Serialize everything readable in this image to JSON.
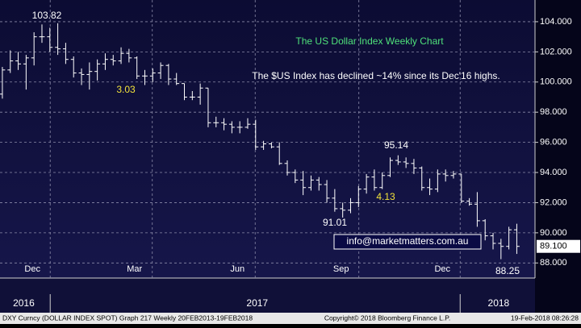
{
  "chart_data": {
    "type": "ohlc",
    "title": "The US Dollar Index Weekly Chart",
    "subtitle": "The $US Index has declined ~14% since its Dec'16 highs.",
    "color": "#ffffff",
    "open": [
      99.2,
      100.8,
      101.4,
      101.2,
      101.6,
      103.0,
      103.0,
      102.3,
      102.2,
      101.5,
      100.6,
      100.5,
      100.7,
      101.2,
      101.5,
      101.4,
      101.9,
      101.6,
      100.4,
      100.4,
      100.6,
      101.1,
      100.2,
      99.9,
      99.0,
      99.0,
      99.6,
      97.3,
      97.3,
      97.2,
      97.0,
      97.0,
      97.2,
      95.7,
      95.9,
      95.7,
      94.6,
      94.0,
      93.5,
      93.0,
      93.5,
      93.2,
      92.3,
      91.6,
      91.5,
      92.0,
      92.9,
      93.7,
      93.0,
      93.8,
      94.8,
      94.7,
      94.6,
      94.3,
      93.0,
      92.9,
      93.9,
      93.8,
      93.9,
      92.1,
      91.9,
      90.8,
      89.8,
      89.3,
      89.1,
      90.2
    ],
    "high": [
      101.0,
      102.1,
      102.0,
      101.8,
      103.3,
      103.82,
      103.6,
      103.9,
      102.6,
      101.7,
      100.9,
      101.3,
      101.5,
      101.9,
      101.8,
      102.3,
      102.2,
      101.7,
      100.8,
      100.9,
      101.3,
      101.2,
      100.6,
      99.9,
      99.4,
      99.9,
      99.6,
      97.7,
      97.6,
      97.4,
      97.4,
      97.6,
      97.5,
      96.1,
      96.0,
      96.0,
      94.8,
      94.2,
      94.1,
      93.8,
      93.7,
      93.5,
      92.9,
      92.0,
      92.3,
      93.1,
      93.9,
      94.2,
      94.0,
      95.0,
      95.14,
      95.0,
      94.9,
      94.4,
      93.6,
      94.2,
      94.2,
      94.1,
      93.9,
      92.3,
      92.7,
      90.9,
      90.0,
      89.6,
      90.4,
      90.6
    ],
    "low": [
      98.9,
      100.6,
      100.8,
      99.5,
      101.1,
      102.6,
      102.0,
      101.8,
      101.2,
      100.3,
      99.8,
      99.5,
      100.1,
      100.8,
      101.1,
      101.2,
      101.3,
      100.2,
      99.8,
      100.0,
      100.2,
      99.8,
      99.8,
      98.8,
      98.8,
      98.5,
      97.0,
      97.0,
      96.8,
      96.6,
      96.6,
      96.9,
      95.5,
      95.5,
      95.6,
      94.5,
      93.8,
      93.3,
      92.5,
      92.8,
      92.8,
      92.0,
      91.4,
      91.01,
      91.3,
      91.7,
      92.6,
      92.8,
      92.9,
      93.7,
      94.5,
      94.3,
      93.9,
      92.8,
      92.5,
      92.7,
      93.4,
      93.6,
      92.0,
      91.8,
      90.4,
      89.5,
      88.9,
      88.25,
      88.9,
      88.6
    ],
    "close": [
      100.8,
      101.4,
      101.2,
      101.6,
      103.0,
      103.0,
      102.3,
      102.2,
      101.5,
      100.6,
      100.5,
      100.7,
      101.2,
      101.5,
      101.4,
      101.9,
      101.6,
      100.4,
      100.4,
      100.6,
      101.1,
      100.2,
      99.9,
      99.0,
      99.0,
      99.6,
      97.3,
      97.3,
      97.2,
      97.0,
      97.0,
      97.2,
      95.7,
      95.9,
      95.7,
      94.6,
      94.0,
      93.5,
      93.0,
      93.5,
      93.2,
      92.3,
      91.6,
      91.5,
      92.0,
      92.9,
      93.7,
      93.0,
      93.8,
      94.8,
      94.7,
      94.6,
      94.3,
      93.0,
      92.9,
      93.9,
      93.8,
      93.9,
      92.1,
      91.9,
      90.8,
      89.8,
      89.3,
      89.1,
      90.2,
      89.1
    ],
    "xlim": [
      -0.3,
      67.3
    ],
    "ylim": [
      87,
      105.44
    ],
    "yticks": [
      {
        "value": 88,
        "label": "88.000"
      },
      {
        "value": 90,
        "label": "90.000"
      },
      {
        "value": 92,
        "label": "92.000"
      },
      {
        "value": 94,
        "label": "94.000"
      },
      {
        "value": 96,
        "label": "96.000"
      },
      {
        "value": 98,
        "label": "98.000"
      },
      {
        "value": 100,
        "label": "100.000"
      },
      {
        "value": 102,
        "label": "102.000"
      },
      {
        "value": 104,
        "label": "104.000"
      }
    ],
    "xticks": [
      {
        "value": 3.8,
        "label": "Dec"
      },
      {
        "value": 16.7,
        "label": "Mar"
      },
      {
        "value": 29.7,
        "label": "Jun"
      },
      {
        "value": 42.8,
        "label": "Sep"
      },
      {
        "value": 55.6,
        "label": "Dec"
      }
    ],
    "year_ticks": [
      {
        "value": 2.7,
        "label": "2016"
      },
      {
        "value": 32.2,
        "label": "2017"
      },
      {
        "value": 62.7,
        "label": "2018"
      }
    ],
    "grid": true,
    "annotations": [
      "103.82",
      "3.03",
      "91.01",
      "95.14",
      "4.13",
      "88.25"
    ],
    "last_price": {
      "value": 89.1,
      "label": "89.100"
    },
    "watermark": "info@marketmatters.com.au",
    "footer": [
      "DXY Curncy (DOLLAR INDEX SPOT) Graph 217  Weekly 20FEB2013-19FEB2018",
      "Copyright© 2018 Bloomberg Finance L.P.",
      "19-Feb-2018 08:26:28"
    ]
  }
}
